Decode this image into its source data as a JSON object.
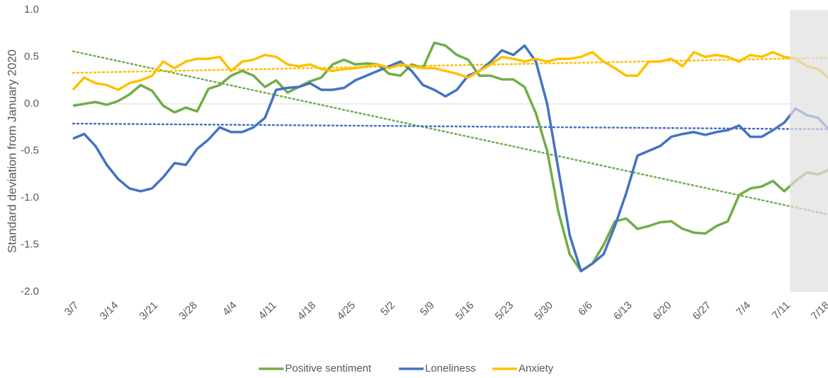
{
  "chart_data": {
    "type": "line",
    "y_label": "Standard deviation from January 2020",
    "xlim": [
      0,
      134
    ],
    "ylim": [
      -2.0,
      1.0
    ],
    "xticks": [
      {
        "value": 0,
        "label": "3/7"
      },
      {
        "value": 7,
        "label": "3/14"
      },
      {
        "value": 14,
        "label": "3/21"
      },
      {
        "value": 21,
        "label": "3/28"
      },
      {
        "value": 28,
        "label": "4/4"
      },
      {
        "value": 35,
        "label": "4/11"
      },
      {
        "value": 42,
        "label": "4/18"
      },
      {
        "value": 49,
        "label": "4/25"
      },
      {
        "value": 56,
        "label": "5/2"
      },
      {
        "value": 63,
        "label": "5/9"
      },
      {
        "value": 70,
        "label": "5/16"
      },
      {
        "value": 77,
        "label": "5/23"
      },
      {
        "value": 84,
        "label": "5/30"
      },
      {
        "value": 91,
        "label": "6/6"
      },
      {
        "value": 98,
        "label": "6/13"
      },
      {
        "value": 105,
        "label": "6/20"
      },
      {
        "value": 112,
        "label": "6/27"
      },
      {
        "value": 119,
        "label": "7/4"
      },
      {
        "value": 126,
        "label": "7/11"
      },
      {
        "value": 133,
        "label": "7/18"
      }
    ],
    "yticks": [
      {
        "value": 1.0,
        "label": "1.0"
      },
      0.5,
      {
        "value": 0,
        "label": "0.0"
      },
      -0.5,
      {
        "value": -1.0,
        "label": "-1.0"
      },
      -1.5,
      {
        "value": -2.0,
        "label": "-2.0"
      }
    ],
    "highlight_xlim": [
      127,
      134
    ],
    "x": [
      0,
      2,
      4,
      6,
      8,
      10,
      12,
      14,
      16,
      18,
      20,
      22,
      24,
      26,
      28,
      30,
      32,
      34,
      36,
      38,
      40,
      42,
      44,
      46,
      48,
      50,
      52,
      54,
      56,
      58,
      60,
      62,
      64,
      66,
      68,
      70,
      72,
      74,
      76,
      78,
      80,
      82,
      84,
      86,
      88,
      90,
      92,
      94,
      96,
      98,
      100,
      102,
      104,
      106,
      108,
      110,
      112,
      114,
      116,
      118,
      120,
      122,
      124,
      126,
      128,
      130,
      132,
      134
    ],
    "series": [
      {
        "name": "Positive sentiment",
        "color": "#70ad47",
        "trend": [
          0.56,
          -1.18
        ],
        "values": [
          -0.02,
          0.0,
          0.02,
          -0.01,
          0.03,
          0.1,
          0.2,
          0.14,
          -0.02,
          -0.09,
          -0.04,
          -0.08,
          0.16,
          0.2,
          0.3,
          0.35,
          0.3,
          0.18,
          0.25,
          0.12,
          0.18,
          0.24,
          0.28,
          0.42,
          0.47,
          0.42,
          0.43,
          0.42,
          0.32,
          0.3,
          0.42,
          0.38,
          0.65,
          0.62,
          0.52,
          0.47,
          0.3,
          0.3,
          0.26,
          0.26,
          0.18,
          -0.1,
          -0.5,
          -1.15,
          -1.6,
          -1.78,
          -1.7,
          -1.5,
          -1.25,
          -1.22,
          -1.33,
          -1.3,
          -1.26,
          -1.25,
          -1.33,
          -1.37,
          -1.38,
          -1.3,
          -1.25,
          -0.97,
          -0.9,
          -0.88,
          -0.82,
          -0.93,
          -0.82,
          -0.73,
          -0.75,
          -0.7
        ]
      },
      {
        "name": "Loneliness",
        "color": "#4472c4",
        "trend": [
          -0.21,
          -0.27
        ],
        "values": [
          -0.37,
          -0.32,
          -0.45,
          -0.65,
          -0.8,
          -0.9,
          -0.93,
          -0.9,
          -0.78,
          -0.63,
          -0.65,
          -0.48,
          -0.38,
          -0.25,
          -0.3,
          -0.3,
          -0.25,
          -0.15,
          0.15,
          0.17,
          0.18,
          0.22,
          0.15,
          0.15,
          0.17,
          0.25,
          0.3,
          0.35,
          0.4,
          0.45,
          0.35,
          0.2,
          0.15,
          0.08,
          0.15,
          0.3,
          0.35,
          0.45,
          0.57,
          0.52,
          0.62,
          0.45,
          0.0,
          -0.7,
          -1.4,
          -1.78,
          -1.7,
          -1.6,
          -1.3,
          -0.95,
          -0.55,
          -0.5,
          -0.45,
          -0.35,
          -0.32,
          -0.3,
          -0.33,
          -0.3,
          -0.28,
          -0.23,
          -0.35,
          -0.35,
          -0.28,
          -0.2,
          -0.05,
          -0.12,
          -0.15,
          -0.28
        ]
      },
      {
        "name": "Anxiety",
        "color": "#ffc000",
        "trend": [
          0.33,
          0.49
        ],
        "values": [
          0.15,
          0.28,
          0.22,
          0.2,
          0.15,
          0.22,
          0.25,
          0.3,
          0.45,
          0.38,
          0.45,
          0.48,
          0.48,
          0.5,
          0.35,
          0.45,
          0.47,
          0.52,
          0.5,
          0.42,
          0.4,
          0.42,
          0.37,
          0.35,
          0.37,
          0.38,
          0.4,
          0.42,
          0.38,
          0.42,
          0.4,
          0.38,
          0.38,
          0.35,
          0.32,
          0.28,
          0.35,
          0.42,
          0.5,
          0.48,
          0.45,
          0.48,
          0.45,
          0.48,
          0.48,
          0.5,
          0.55,
          0.45,
          0.38,
          0.3,
          0.3,
          0.45,
          0.45,
          0.48,
          0.4,
          0.55,
          0.5,
          0.52,
          0.5,
          0.45,
          0.52,
          0.5,
          0.55,
          0.5,
          0.48,
          0.4,
          0.37,
          0.27
        ]
      }
    ]
  }
}
